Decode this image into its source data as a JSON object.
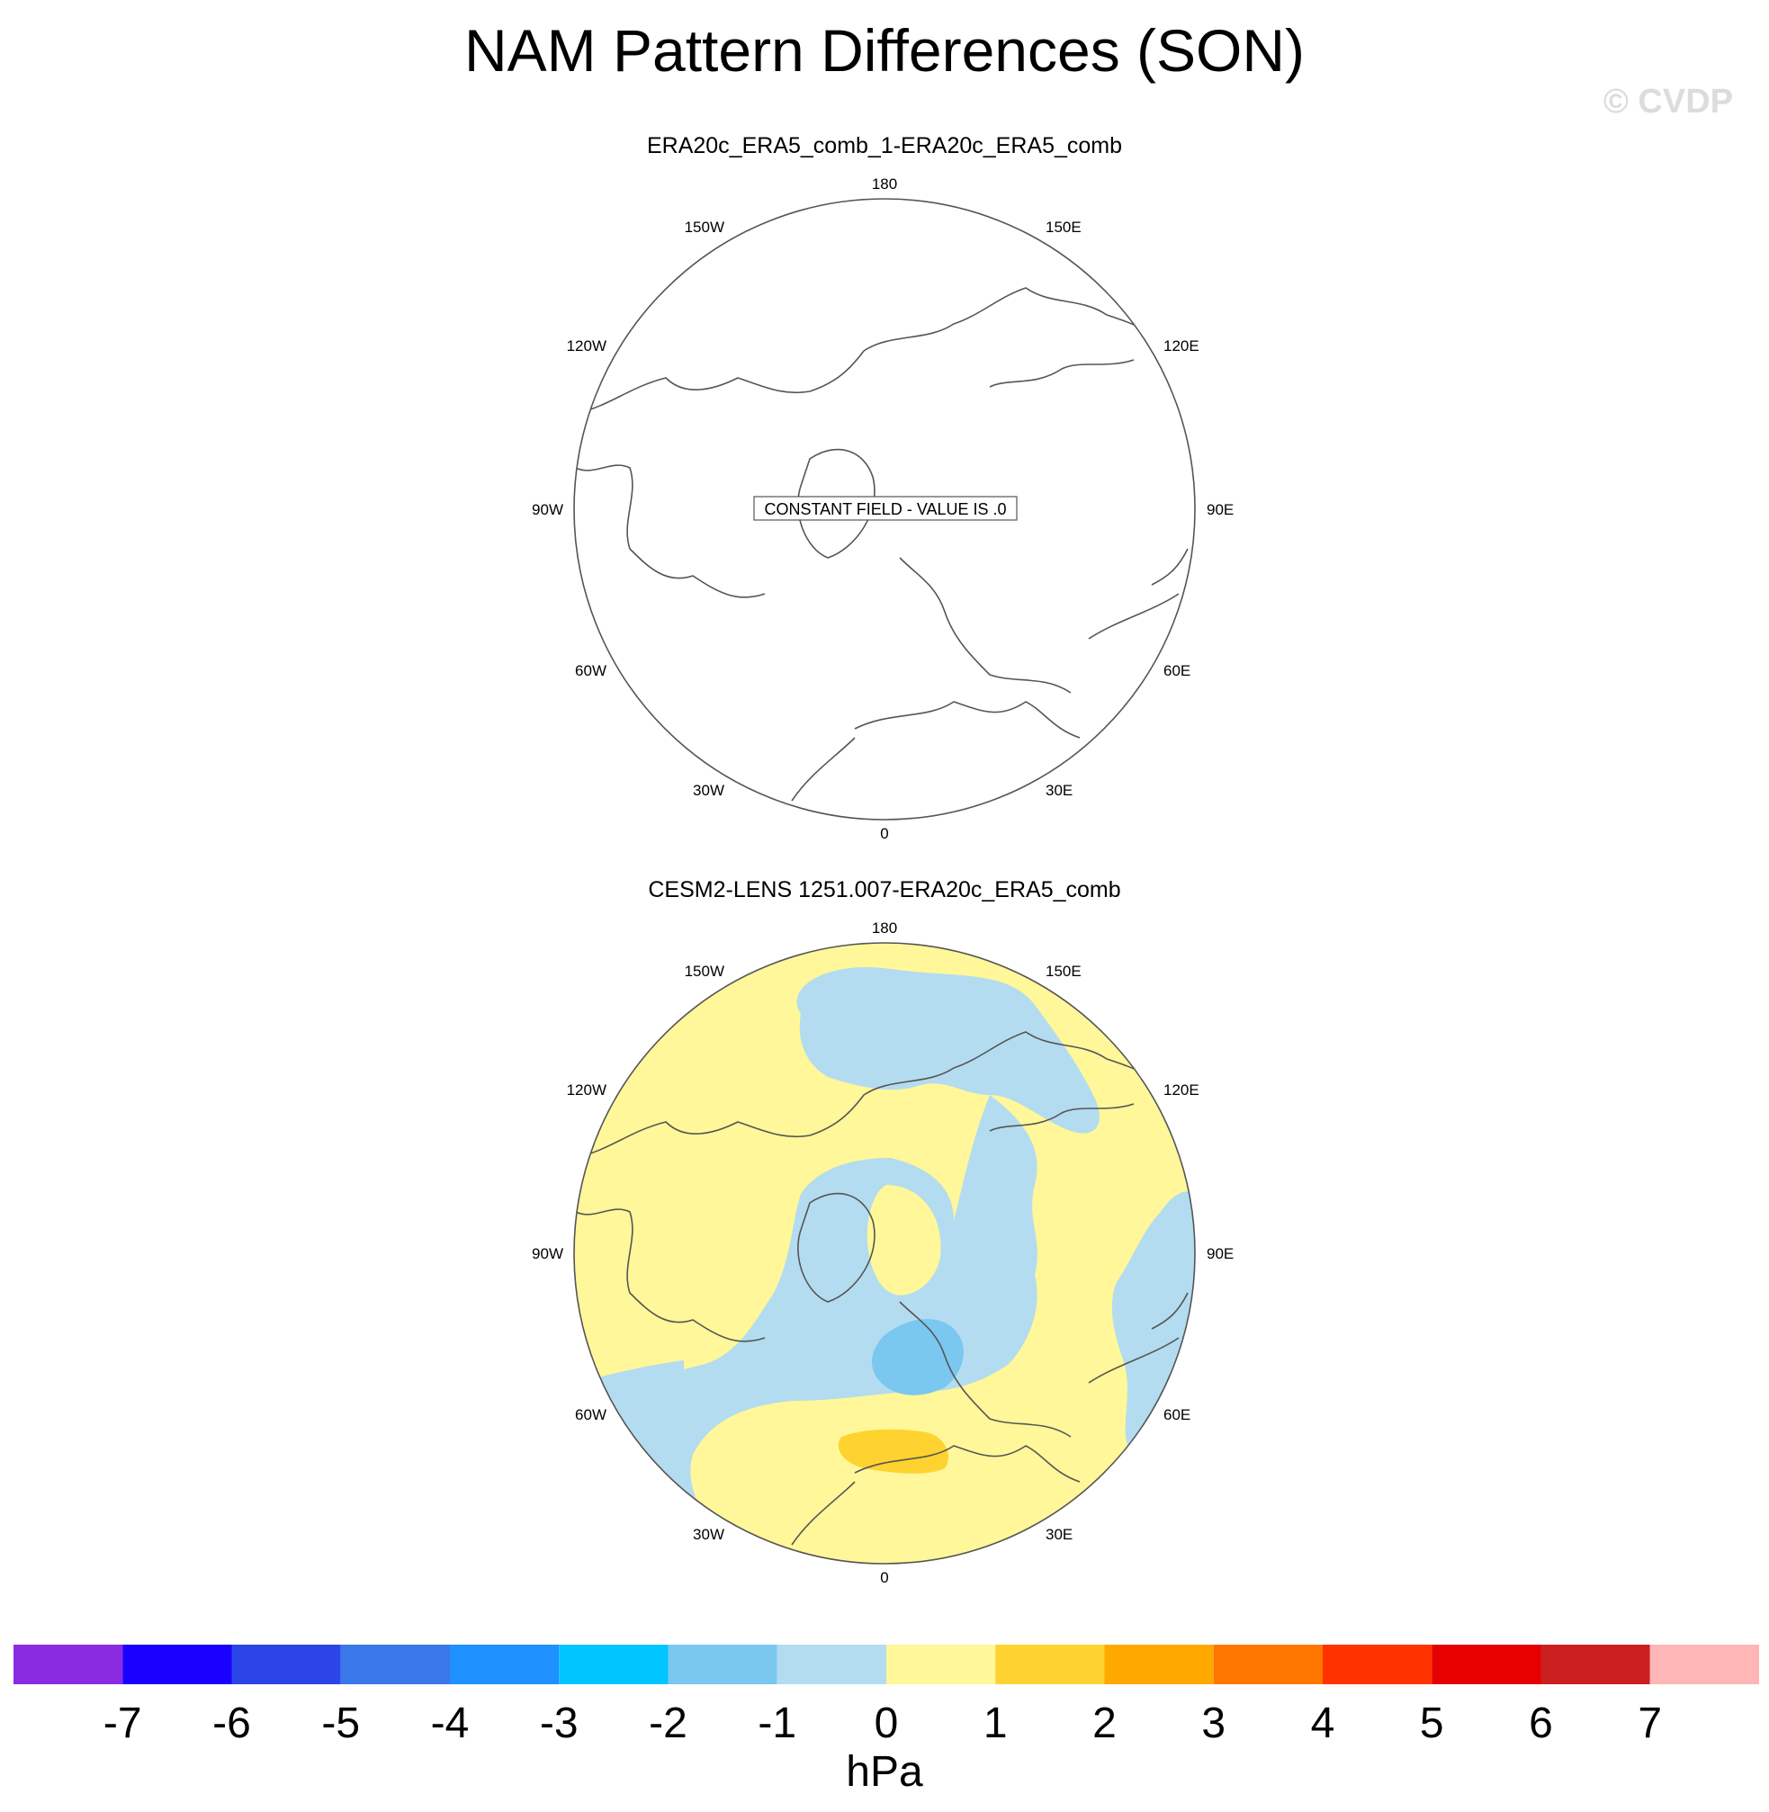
{
  "title": "NAM Pattern Differences (SON)",
  "copyright": "© CVDP",
  "panels": [
    {
      "title": "ERA20c_ERA5_comb_1-ERA20c_ERA5_comb",
      "note": "CONSTANT FIELD - VALUE IS .0",
      "lon_labels": {
        "n": "180",
        "nnw": "150W",
        "nne": "150E",
        "wnw": "120W",
        "ene": "120E",
        "w": "90W",
        "e": "90E",
        "wsw": "60W",
        "ese": "60E",
        "ssw": "30W",
        "sse": "30E",
        "s": "0"
      }
    },
    {
      "title": "CESM2-LENS 1251.007-ERA20c_ERA5_comb",
      "lon_labels": {
        "n": "180",
        "nnw": "150W",
        "nne": "150E",
        "wnw": "120W",
        "ene": "120E",
        "w": "90W",
        "e": "90E",
        "wsw": "60W",
        "ese": "60E",
        "ssw": "30W",
        "sse": "30E",
        "s": "0"
      }
    }
  ],
  "colorbar": {
    "labels": [
      "-7",
      "-6",
      "-5",
      "-4",
      "-3",
      "-2",
      "-1",
      "0",
      "1",
      "2",
      "3",
      "4",
      "5",
      "6",
      "7"
    ],
    "colors": [
      "#8a2be2",
      "#1a00ff",
      "#2b45e6",
      "#3878e8",
      "#1e90ff",
      "#00c5ff",
      "#7ac7f0",
      "#b3dcf0",
      "#fff799",
      "#fed330",
      "#ffa800",
      "#ff7700",
      "#ff3300",
      "#e60000",
      "#cc1f1f",
      "#ffb6b6"
    ],
    "units": "hPa"
  }
}
